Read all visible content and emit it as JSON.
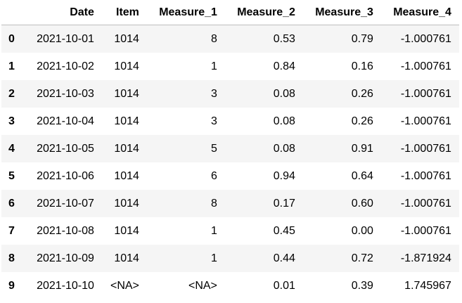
{
  "table": {
    "columns": [
      "Date",
      "Item",
      "Measure_1",
      "Measure_2",
      "Measure_3",
      "Measure_4"
    ],
    "index": [
      "0",
      "1",
      "2",
      "3",
      "4",
      "5",
      "6",
      "7",
      "8",
      "9"
    ],
    "rows": [
      [
        "2021-10-01",
        "1014",
        "8",
        "0.53",
        "0.79",
        "-1.000761"
      ],
      [
        "2021-10-02",
        "1014",
        "1",
        "0.84",
        "0.16",
        "-1.000761"
      ],
      [
        "2021-10-03",
        "1014",
        "3",
        "0.08",
        "0.26",
        "-1.000761"
      ],
      [
        "2021-10-04",
        "1014",
        "3",
        "0.08",
        "0.26",
        "-1.000761"
      ],
      [
        "2021-10-05",
        "1014",
        "5",
        "0.08",
        "0.91",
        "-1.000761"
      ],
      [
        "2021-10-06",
        "1014",
        "6",
        "0.94",
        "0.64",
        "-1.000761"
      ],
      [
        "2021-10-07",
        "1014",
        "8",
        "0.17",
        "0.60",
        "-1.000761"
      ],
      [
        "2021-10-08",
        "1014",
        "1",
        "0.45",
        "0.00",
        "-1.000761"
      ],
      [
        "2021-10-09",
        "1014",
        "1",
        "0.44",
        "0.72",
        "-1.871924"
      ],
      [
        "2021-10-10",
        "<NA>",
        "<NA>",
        "0.01",
        "0.39",
        "1.745967"
      ]
    ]
  }
}
